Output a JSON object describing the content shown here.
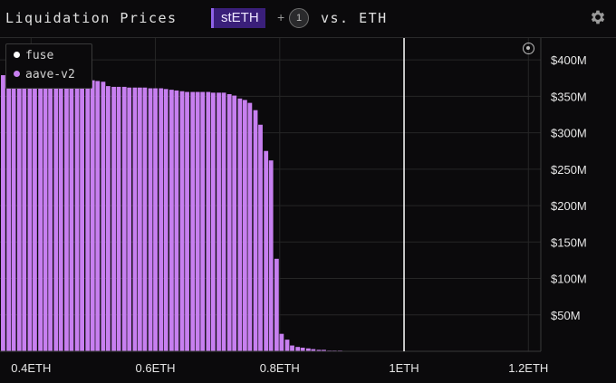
{
  "header": {
    "title": "Liquidation Prices",
    "asset": "stETH",
    "plus": "+",
    "extra_count": "1",
    "vs_label": "vs. ETH",
    "settings_icon": "gear-icon"
  },
  "legend": [
    {
      "name": "fuse",
      "color": "#ffffff"
    },
    {
      "name": "aave-v2",
      "color": "#c77ff0"
    }
  ],
  "colors": {
    "bar": "#c77ff0",
    "background": "#0b0a0c",
    "grid": "#262626",
    "current_price_line": "#ffffff"
  },
  "chart_data": {
    "type": "bar",
    "title": "Liquidation Prices",
    "x_unit": "ETH",
    "xlim": [
      0.35,
      1.22
    ],
    "ylim": [
      0,
      430
    ],
    "y_unit": "$M",
    "xticks": [
      "0.4ETH",
      "0.6ETH",
      "0.8ETH",
      "1ETH",
      "1.2ETH"
    ],
    "xtick_values": [
      0.4,
      0.6,
      0.8,
      1.0,
      1.2
    ],
    "yticks": [
      "$50M",
      "$100M",
      "$150M",
      "$200M",
      "$250M",
      "$300M",
      "$350M",
      "$400M"
    ],
    "ytick_values": [
      50,
      100,
      150,
      200,
      250,
      300,
      350,
      400
    ],
    "bar_width": 0.007,
    "current_price": 1.0,
    "grid": true,
    "legend_position": "top-left",
    "series": [
      {
        "name": "fuse",
        "x": [],
        "values": []
      },
      {
        "name": "aave-v2",
        "x": [
          0.355,
          0.364,
          0.372,
          0.381,
          0.389,
          0.398,
          0.406,
          0.415,
          0.423,
          0.431,
          0.44,
          0.448,
          0.457,
          0.465,
          0.474,
          0.482,
          0.491,
          0.499,
          0.507,
          0.516,
          0.524,
          0.533,
          0.541,
          0.55,
          0.558,
          0.567,
          0.575,
          0.583,
          0.592,
          0.6,
          0.609,
          0.617,
          0.626,
          0.634,
          0.643,
          0.651,
          0.66,
          0.668,
          0.676,
          0.685,
          0.693,
          0.702,
          0.71,
          0.719,
          0.727,
          0.736,
          0.744,
          0.752,
          0.761,
          0.769,
          0.778,
          0.786,
          0.795,
          0.803,
          0.812,
          0.82,
          0.829,
          0.837,
          0.846,
          0.854,
          0.863,
          0.871,
          0.88,
          0.888,
          0.897,
          0.905,
          0.914,
          0.922,
          0.931,
          0.939
        ],
        "values": [
          379,
          377,
          376,
          376,
          376,
          376,
          375,
          375,
          375,
          375,
          375,
          375,
          374,
          374,
          374,
          373,
          372,
          372,
          371,
          370,
          364,
          363,
          363,
          363,
          362,
          362,
          362,
          362,
          361,
          361,
          361,
          360,
          359,
          358,
          357,
          356,
          356,
          356,
          356,
          356,
          355,
          355,
          355,
          353,
          351,
          347,
          345,
          341,
          331,
          311,
          275,
          262,
          127,
          24,
          16,
          8,
          6,
          5,
          4,
          3,
          2,
          2,
          1,
          1,
          1,
          0.5,
          0.5,
          0.5,
          0.3,
          0.3
        ]
      }
    ]
  }
}
